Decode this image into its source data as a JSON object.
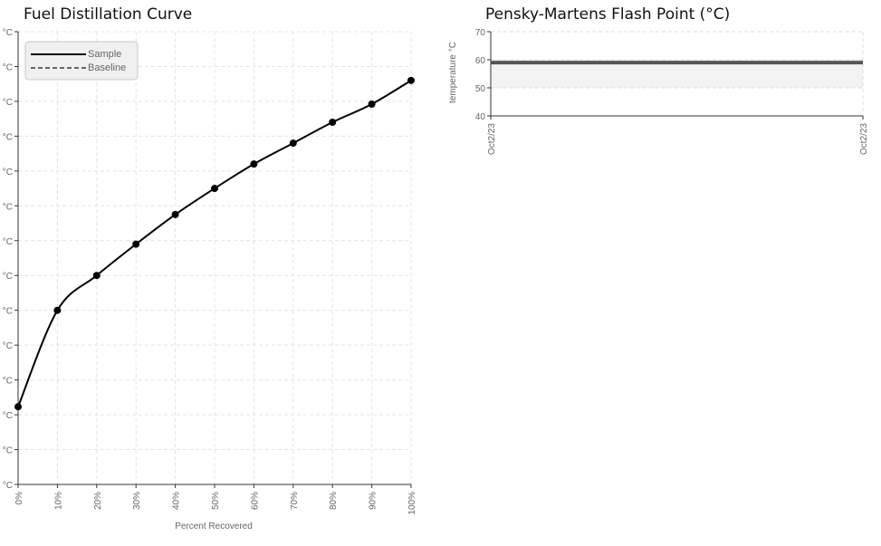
{
  "chart_data": [
    {
      "type": "line",
      "title": "Fuel Distillation Curve",
      "xlabel": "Percent Recovered",
      "ylabel": "",
      "x_categories": [
        "0%",
        "10%",
        "20%",
        "30%",
        "40%",
        "50%",
        "60%",
        "70%",
        "80%",
        "90%",
        "100%"
      ],
      "y_tick_labels": [
        "°C",
        "°C",
        "°C",
        "°C",
        "°C",
        "°C",
        "°C",
        "°C",
        "°C",
        "°C",
        "°C",
        "°C",
        "°C",
        "°C"
      ],
      "ylim": [
        0,
        13
      ],
      "grid": true,
      "legend_position": "top-left",
      "series": [
        {
          "name": "Sample",
          "style": "solid",
          "color": "#000000",
          "values": [
            2.23,
            5.0,
            6.0,
            6.9,
            7.75,
            8.5,
            9.2,
            9.8,
            10.4,
            10.92,
            11.6
          ]
        },
        {
          "name": "Baseline",
          "style": "dashed",
          "color": "#666666",
          "values": []
        }
      ]
    },
    {
      "type": "line",
      "title": "Pensky-Martens Flash Point (°C)",
      "xlabel": "",
      "ylabel": "temperature °C",
      "x_tick_labels": [
        "Oct2/23",
        "Oct2/23"
      ],
      "y_ticks": [
        40,
        50,
        60,
        70
      ],
      "ylim": [
        40,
        70
      ],
      "band": [
        50,
        60
      ],
      "grid": true,
      "series": [
        {
          "name": "",
          "color": "#555555",
          "values": [
            59,
            59
          ]
        }
      ]
    }
  ]
}
